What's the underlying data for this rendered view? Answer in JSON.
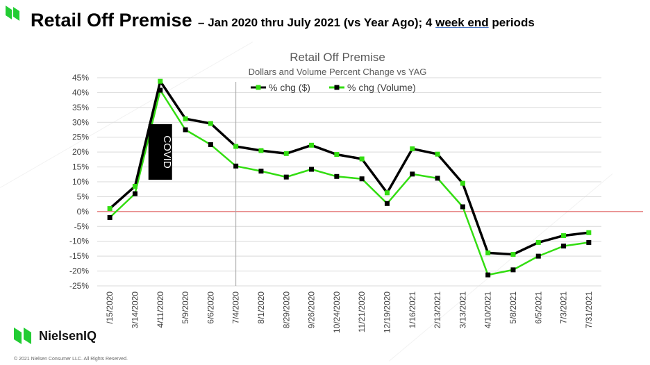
{
  "header": {
    "title": "Retail Off Premise",
    "subtitle_prefix": "– Jan 2020 thru July 2021 (vs Year Ago); 4 ",
    "subtitle_link": "week end",
    "subtitle_suffix": " periods"
  },
  "brand": {
    "name": "NielsenIQ",
    "copyright": "© 2021 Nielsen Consumer LLC. All Rights Reserved."
  },
  "colors": {
    "dollars": "#33dd11",
    "volume": "#000000",
    "zero_line": "#e06666",
    "brand_green": "#22cc33"
  },
  "chart_data": {
    "type": "line",
    "title": "Retail Off Premise",
    "subtitle": "Dollars and Volume Percent Change vs YAG",
    "categories": [
      "1/15/2020",
      "3/14/2020",
      "4/11/2020",
      "5/9/2020",
      "6/6/2020",
      "7/4/2020",
      "8/1/2020",
      "8/29/2020",
      "9/26/2020",
      "10/24/2020",
      "11/21/2020",
      "12/19/2020",
      "1/16/2021",
      "2/13/2021",
      "3/13/2021",
      "4/10/2021",
      "5/8/2021",
      "6/5/2021",
      "7/3/2021",
      "7/31/2021"
    ],
    "tick_labels": [
      "/15/2020",
      "3/14/2020",
      "4/11/2020",
      "5/9/2020",
      "6/6/2020",
      "7/4/2020",
      "8/1/2020",
      "8/29/2020",
      "9/26/2020",
      "10/24/2020",
      "11/21/2020",
      "12/19/2020",
      "1/16/2021",
      "2/13/2021",
      "3/13/2021",
      "4/10/2021",
      "5/8/2021",
      "6/5/2021",
      "7/3/2021",
      "7/31/2021"
    ],
    "series": [
      {
        "name": "% chg ($)",
        "line_color": "#000000",
        "marker_color": "#33dd11",
        "values": [
          1.0,
          8.5,
          43.8,
          31.2,
          29.6,
          21.9,
          20.5,
          19.5,
          22.3,
          19.2,
          17.7,
          6.3,
          21.1,
          19.3,
          9.5,
          -13.9,
          -14.4,
          -10.4,
          -8.1,
          -7.1
        ]
      },
      {
        "name": "% chg (Volume)",
        "line_color": "#33dd11",
        "marker_color": "#000000",
        "values": [
          -2.0,
          6.0,
          40.8,
          27.5,
          22.5,
          15.3,
          13.6,
          11.6,
          14.2,
          11.8,
          11.0,
          2.7,
          12.6,
          11.2,
          1.6,
          -21.3,
          -19.6,
          -15.0,
          -11.6,
          -10.4
        ]
      }
    ],
    "ylim": [
      -25,
      45
    ],
    "y_ticks": [
      "45%",
      "40%",
      "35%",
      "30%",
      "25%",
      "20%",
      "15%",
      "10%",
      "5%",
      "0%",
      "-5%",
      "-10%",
      "-15%",
      "-20%",
      "-25%"
    ],
    "grid": "horizontal",
    "legend_position": "top-center",
    "annotation": {
      "text": "COVID",
      "category": "4/11/2020"
    },
    "reference_line_category": "7/4/2020"
  }
}
